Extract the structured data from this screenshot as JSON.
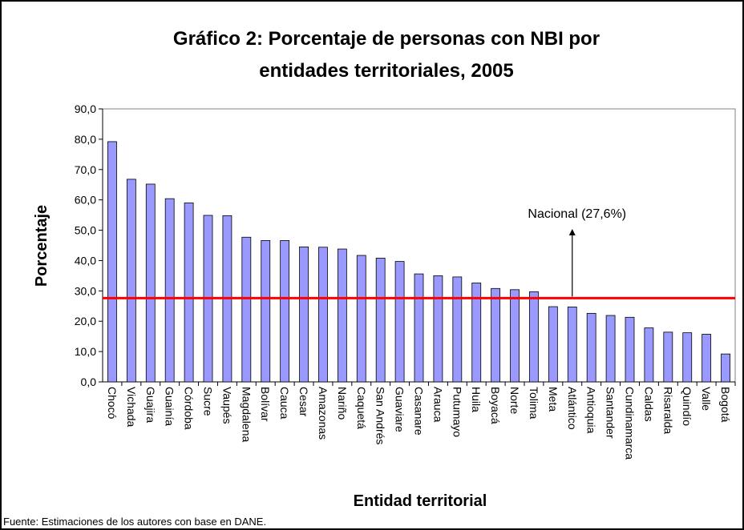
{
  "chart_data": {
    "type": "bar",
    "title": [
      "Gráfico 2: Porcentaje de personas con NBI por",
      "entidades territoriales, 2005"
    ],
    "y_label": "Porcentaje",
    "x_label": "Entidad territorial",
    "source": "Fuente: Estimaciones de los autores con base en DANE.",
    "categories": [
      "Chocó",
      "Vichada",
      "Guajira",
      "Guainía",
      "Córdoba",
      "Sucre",
      "Vaupés",
      "Magdalena",
      "Bolívar",
      "Cauca",
      "Cesar",
      "Amazonas",
      "Nariño",
      "Caquetá",
      "San Andrés",
      "Guaviare",
      "Casanare",
      "Arauca",
      "Putumayo",
      "Huila",
      "Boyacá",
      "Norte",
      "Tolima",
      "Meta",
      "Atlántico",
      "Antioquia",
      "Santander",
      "Cundinamarca",
      "Caldas",
      "Risaralda",
      "Quindío",
      "Valle",
      "Bogotá"
    ],
    "values": [
      79.2,
      66.8,
      65.2,
      60.4,
      59.0,
      54.9,
      54.8,
      47.7,
      46.6,
      46.6,
      44.5,
      44.4,
      43.8,
      41.7,
      40.8,
      39.7,
      35.6,
      35.0,
      34.6,
      32.6,
      30.8,
      30.4,
      29.7,
      24.8,
      24.7,
      22.6,
      21.9,
      21.3,
      17.8,
      16.4,
      16.2,
      15.7,
      9.2
    ],
    "color": "#9999ff",
    "ylim": [
      0,
      90
    ],
    "yticks": [
      {
        "value": 0,
        "label": "0,0"
      },
      {
        "value": 10,
        "label": "10,0"
      },
      {
        "value": 20,
        "label": "20,0"
      },
      {
        "value": 30,
        "label": "30,0"
      },
      {
        "value": 40,
        "label": "40,0"
      },
      {
        "value": 50,
        "label": "50,0"
      },
      {
        "value": 60,
        "label": "60,0"
      },
      {
        "value": 70,
        "label": "70,0"
      },
      {
        "value": 80,
        "label": "80,0"
      },
      {
        "value": 90,
        "label": "90,0"
      }
    ],
    "reference_line": {
      "label": "Nacional (27,6%)",
      "value": 27.6,
      "color": "#ff0000"
    }
  }
}
